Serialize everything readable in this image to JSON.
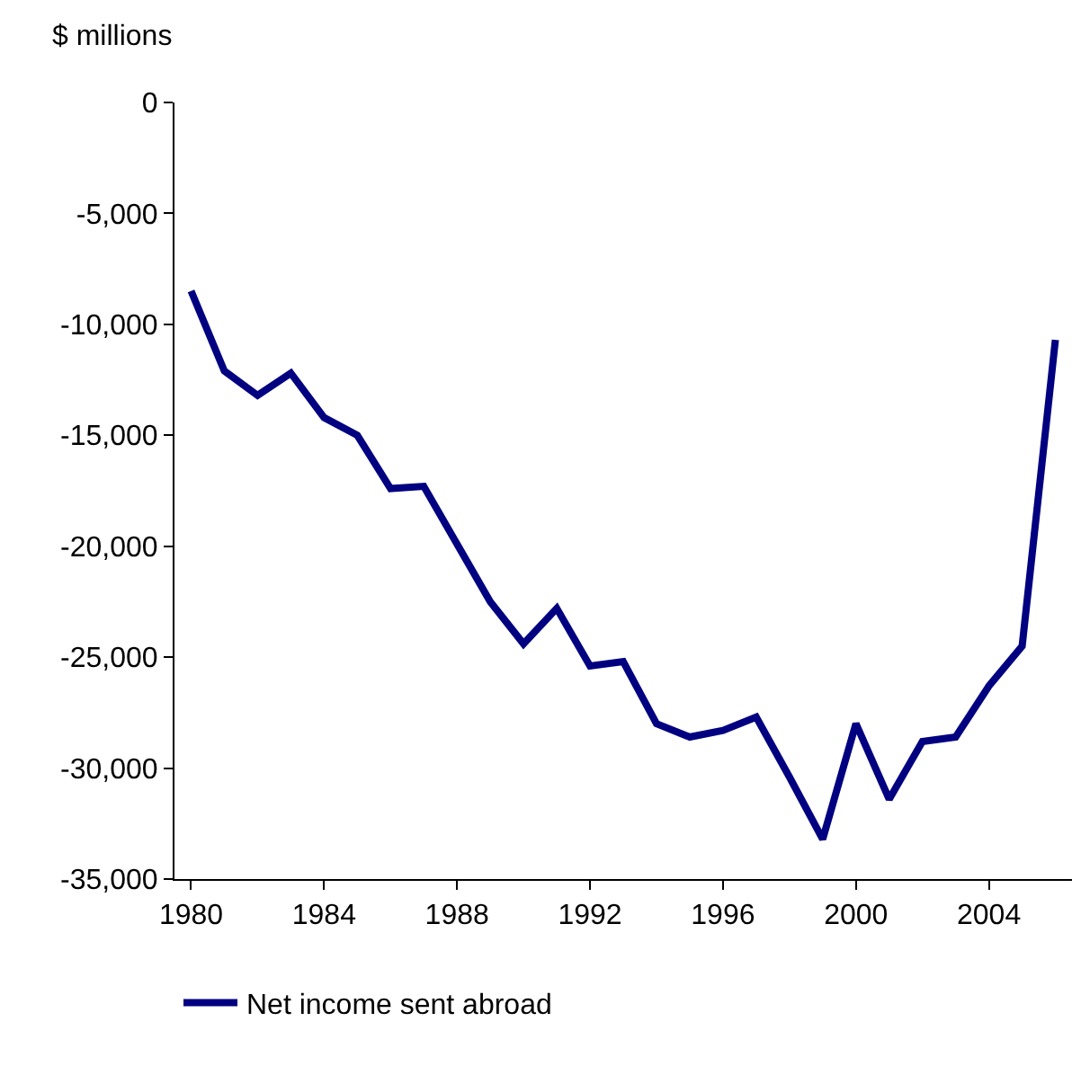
{
  "chart_data": {
    "type": "line",
    "ylabel": "$ millions",
    "x": [
      1980,
      1981,
      1982,
      1983,
      1984,
      1985,
      1986,
      1987,
      1988,
      1989,
      1990,
      1991,
      1992,
      1993,
      1994,
      1995,
      1996,
      1997,
      1998,
      1999,
      2000,
      2001,
      2002,
      2003,
      2004,
      2005,
      2006
    ],
    "series": [
      {
        "name": "Net income sent abroad",
        "color": "#000080",
        "values": [
          -8500,
          -12100,
          -13200,
          -12200,
          -14200,
          -15000,
          -17400,
          -17300,
          -19900,
          -22500,
          -24400,
          -22800,
          -25400,
          -25200,
          -28000,
          -28600,
          -28300,
          -27700,
          -30400,
          -33200,
          -28000,
          -31400,
          -28800,
          -28600,
          -26300,
          -24500,
          -10700
        ]
      }
    ],
    "xlim": [
      1979.5,
      2006.5
    ],
    "xticks": [
      1980,
      1984,
      1988,
      1992,
      1996,
      2000,
      2004
    ],
    "ylim": [
      -35000,
      0
    ],
    "yticks": [
      {
        "value": 0,
        "label": "0"
      },
      {
        "value": -5000,
        "label": "-5,000"
      },
      {
        "value": -10000,
        "label": "-10,000"
      },
      {
        "value": -15000,
        "label": "-15,000"
      },
      {
        "value": -20000,
        "label": "-20,000"
      },
      {
        "value": -25000,
        "label": "-25,000"
      },
      {
        "value": -30000,
        "label": "-30,000"
      },
      {
        "value": -35000,
        "label": "-35,000"
      }
    ],
    "legend": "bottom",
    "marker": "none",
    "line_style": "solid"
  }
}
